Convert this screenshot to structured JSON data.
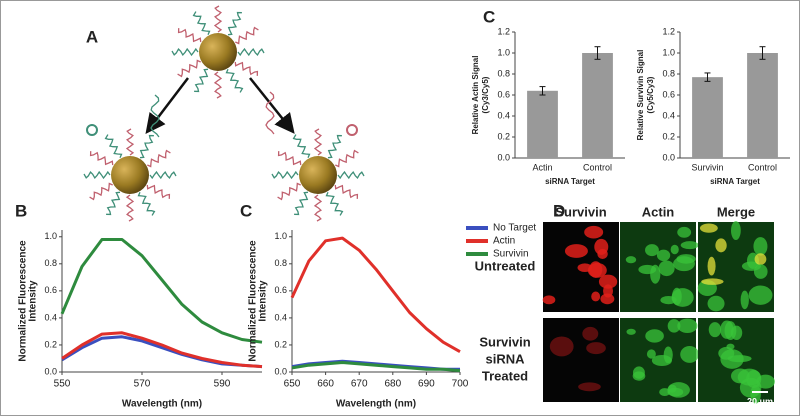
{
  "schematic": {
    "panel": "A"
  },
  "chart_data": [
    {
      "type": "bar",
      "panel": "C",
      "categories": [
        "Actin",
        "Control"
      ],
      "values": [
        0.64,
        1.0
      ],
      "errors": [
        0.04,
        0.06
      ],
      "color": "#999999",
      "ylabel": [
        "Relative Actin Signal",
        "(Cy3/Cy5)"
      ],
      "xlabel": "siRNA Target",
      "ylim": [
        0,
        1.2
      ],
      "yticks": [
        {
          "value": 0,
          "label": "0.0"
        },
        0.2,
        0.4,
        0.6,
        0.8,
        {
          "value": 1,
          "label": "1.0"
        },
        1.2
      ]
    },
    {
      "type": "bar",
      "categories": [
        "Survivin",
        "Control"
      ],
      "values": [
        0.77,
        1.0
      ],
      "errors": [
        0.04,
        0.06
      ],
      "color": "#999999",
      "ylabel": [
        "Relative Survivin Signal",
        "(Cy5/Cy3)"
      ],
      "xlabel": "siRNA Target",
      "ylim": [
        0,
        1.2
      ],
      "yticks": [
        {
          "value": 0,
          "label": "0.0"
        },
        0.2,
        0.4,
        0.6,
        0.8,
        {
          "value": 1,
          "label": "1.0"
        },
        1.2
      ]
    },
    {
      "type": "line",
      "panel": "B",
      "ylabel": [
        "Normalized Fluorescence",
        "Intensity"
      ],
      "xlabel": "Wavelength (nm)",
      "x": [
        550,
        555,
        560,
        565,
        570,
        575,
        580,
        585,
        590,
        595,
        600
      ],
      "series": [
        {
          "color": "#3a4fbf",
          "values": [
            0.09,
            0.18,
            0.25,
            0.26,
            0.23,
            0.18,
            0.13,
            0.09,
            0.06,
            0.05,
            0.04
          ]
        },
        {
          "color": "#e0302a",
          "values": [
            0.1,
            0.2,
            0.28,
            0.29,
            0.25,
            0.2,
            0.14,
            0.1,
            0.07,
            0.05,
            0.04
          ]
        },
        {
          "color": "#2e8b3e",
          "values": [
            0.43,
            0.78,
            0.98,
            0.98,
            0.86,
            0.68,
            0.5,
            0.37,
            0.29,
            0.24,
            0.22
          ]
        }
      ],
      "xlim": [
        550,
        600
      ],
      "xticks": [
        550,
        570,
        590
      ],
      "ylim": [
        0,
        1.05
      ],
      "yticks": [
        {
          "value": 0,
          "label": "0.0"
        },
        0.2,
        0.4,
        0.6,
        0.8,
        {
          "value": 1,
          "label": "1.0"
        }
      ]
    },
    {
      "type": "line",
      "panel": "C",
      "ylabel": [
        "Normalized Fluorescence",
        "Intensity"
      ],
      "xlabel": "Wavelength (nm)",
      "x": [
        650,
        655,
        660,
        665,
        670,
        675,
        680,
        685,
        690,
        695,
        700
      ],
      "series": [
        {
          "name": "No Target",
          "color": "#3a4fbf",
          "values": [
            0.04,
            0.06,
            0.07,
            0.08,
            0.07,
            0.06,
            0.05,
            0.04,
            0.03,
            0.02,
            0.02
          ]
        },
        {
          "name": "Actin",
          "color": "#e0302a",
          "values": [
            0.55,
            0.82,
            0.97,
            0.99,
            0.9,
            0.76,
            0.6,
            0.44,
            0.32,
            0.22,
            0.15
          ]
        },
        {
          "name": "Survivin",
          "color": "#2e8b3e",
          "values": [
            0.03,
            0.05,
            0.06,
            0.07,
            0.06,
            0.05,
            0.04,
            0.03,
            0.02,
            0.02,
            0.01
          ]
        }
      ],
      "legend": "top-right",
      "xlim": [
        650,
        700
      ],
      "xticks": [
        650,
        660,
        670,
        680,
        690,
        700
      ],
      "ylim": [
        0,
        1.05
      ],
      "yticks": [
        {
          "value": 0,
          "label": "0.0"
        },
        0.2,
        0.4,
        0.6,
        0.8,
        {
          "value": 1,
          "label": "1.0"
        }
      ]
    }
  ],
  "microscopy": {
    "panel": "D",
    "columns": [
      "Survivin",
      "Actin",
      "Merge"
    ],
    "rows": [
      [
        "Untreated"
      ],
      [
        "Survivin",
        "siRNA",
        "Treated"
      ]
    ],
    "scale_bar": "20 μm"
  }
}
